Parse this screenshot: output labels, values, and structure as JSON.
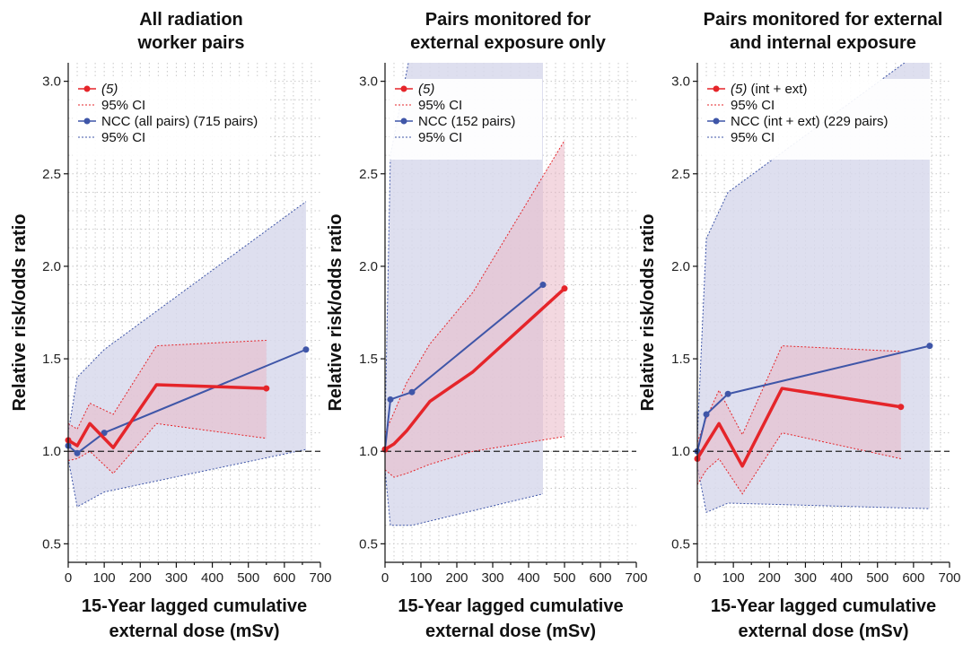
{
  "figure": {
    "ylabel": "Relative risk/odds ratio"
  },
  "colors": {
    "red": "#e5252a",
    "blue": "#3f56a8",
    "red_band": "#e9b8c6",
    "blue_band": "#d8d9ec",
    "grid": "#c8c8c8"
  },
  "chart_data": [
    {
      "type": "line",
      "title_lines": [
        "All radiation",
        "worker pairs"
      ],
      "xlabel_lines": [
        "15-Year lagged cumulative",
        "external dose (mSv)"
      ],
      "ylabel": "Relative risk/odds ratio",
      "xlim": [
        0,
        700
      ],
      "ylim": [
        0.4,
        3.1
      ],
      "xticks": [
        0,
        100,
        200,
        300,
        400,
        500,
        600,
        700
      ],
      "yticks": [
        0.5,
        1.0,
        1.5,
        2.0,
        2.5,
        3.0
      ],
      "reference_line": 1.0,
      "grid": true,
      "legend_position": "top-left",
      "legend": [
        {
          "text": "(5)",
          "italic_prefix": "(5)",
          "suffix": "",
          "style": "red-line-marker"
        },
        {
          "text": "95% CI",
          "style": "red-dotted"
        },
        {
          "text": "NCC (all pairs) (715 pairs)",
          "style": "blue-line-marker"
        },
        {
          "text": "95% CI",
          "style": "blue-dotted"
        }
      ],
      "series": [
        {
          "name": "(5)",
          "color": "red",
          "markers": "ends",
          "x": [
            0,
            25,
            60,
            125,
            245,
            550
          ],
          "y": [
            1.06,
            1.03,
            1.15,
            1.02,
            1.36,
            1.34
          ],
          "ci_lower": [
            0.95,
            0.96,
            1.0,
            0.88,
            1.15,
            1.07
          ],
          "ci_upper": [
            1.15,
            1.12,
            1.26,
            1.2,
            1.57,
            1.6
          ]
        },
        {
          "name": "NCC (all pairs) (715 pairs)",
          "color": "blue",
          "markers": "all",
          "x": [
            0,
            25,
            100,
            660
          ],
          "y": [
            1.03,
            0.99,
            1.1,
            1.55
          ],
          "ci_lower": [
            0.96,
            0.7,
            0.78,
            1.01
          ],
          "ci_upper": [
            1.1,
            1.4,
            1.55,
            2.35
          ]
        }
      ]
    },
    {
      "type": "line",
      "title_lines": [
        "Pairs monitored for",
        "external exposure only"
      ],
      "xlabel_lines": [
        "15-Year lagged cumulative",
        "external dose (mSv)"
      ],
      "ylabel": "Relative risk/odds ratio",
      "xlim": [
        0,
        700
      ],
      "ylim": [
        0.4,
        3.1
      ],
      "xticks": [
        0,
        100,
        200,
        300,
        400,
        500,
        600,
        700
      ],
      "yticks": [
        0.5,
        1.0,
        1.5,
        2.0,
        2.5,
        3.0
      ],
      "reference_line": 1.0,
      "grid": true,
      "legend_position": "top-left",
      "legend": [
        {
          "text": "(5)",
          "italic_prefix": "(5)",
          "suffix": "",
          "style": "red-line-marker"
        },
        {
          "text": "95% CI",
          "style": "red-dotted"
        },
        {
          "text": "NCC (152 pairs)",
          "style": "blue-line-marker"
        },
        {
          "text": "95% CI",
          "style": "blue-dotted"
        }
      ],
      "series": [
        {
          "name": "(5)",
          "color": "red",
          "markers": "ends",
          "x": [
            0,
            25,
            60,
            125,
            245,
            500
          ],
          "y": [
            1.01,
            1.04,
            1.11,
            1.27,
            1.43,
            1.88
          ],
          "ci_lower": [
            0.9,
            0.86,
            0.88,
            0.93,
            1.0,
            1.08
          ],
          "ci_upper": [
            1.1,
            1.21,
            1.37,
            1.58,
            1.86,
            2.68
          ]
        },
        {
          "name": "NCC (152 pairs)",
          "color": "blue",
          "markers": "all",
          "x": [
            0,
            15,
            75,
            440
          ],
          "y": [
            1.01,
            1.28,
            1.32,
            1.9
          ],
          "ci_lower": [
            0.9,
            0.6,
            0.6,
            0.77
          ],
          "ci_upper": [
            1.12,
            2.6,
            3.2,
            3.2
          ]
        }
      ]
    },
    {
      "type": "line",
      "title_lines": [
        "Pairs monitored for external",
        "and internal exposure"
      ],
      "xlabel_lines": [
        "15-Year lagged cumulative",
        "external dose (mSv)"
      ],
      "ylabel": "Relative risk/odds ratio",
      "xlim": [
        0,
        700
      ],
      "ylim": [
        0.4,
        3.1
      ],
      "xticks": [
        0,
        100,
        200,
        300,
        400,
        500,
        600,
        700
      ],
      "yticks": [
        0.5,
        1.0,
        1.5,
        2.0,
        2.5,
        3.0
      ],
      "reference_line": 1.0,
      "grid": true,
      "legend_position": "top-left",
      "legend": [
        {
          "text": "(5) (int + ext)",
          "italic_prefix": "(5)",
          "suffix": " (int + ext)",
          "style": "red-line-marker"
        },
        {
          "text": "95% CI",
          "style": "red-dotted"
        },
        {
          "text": "NCC (int + ext) (229 pairs)",
          "style": "blue-line-marker"
        },
        {
          "text": "95% CI",
          "style": "blue-dotted"
        }
      ],
      "series": [
        {
          "name": "(5) (int + ext)",
          "color": "red",
          "markers": "ends",
          "x": [
            0,
            25,
            60,
            125,
            235,
            565
          ],
          "y": [
            0.96,
            1.04,
            1.15,
            0.92,
            1.34,
            1.24
          ],
          "ci_lower": [
            0.82,
            0.9,
            0.96,
            0.77,
            1.1,
            0.96
          ],
          "ci_upper": [
            1.05,
            1.18,
            1.33,
            1.09,
            1.57,
            1.54
          ]
        },
        {
          "name": "NCC (int + ext) (229 pairs)",
          "color": "blue",
          "markers": "all",
          "x": [
            0,
            25,
            85,
            645
          ],
          "y": [
            1.0,
            1.2,
            1.31,
            1.57
          ],
          "ci_lower": [
            0.92,
            0.67,
            0.72,
            0.69
          ],
          "ci_upper": [
            1.08,
            2.15,
            2.4,
            3.2
          ]
        }
      ]
    }
  ]
}
